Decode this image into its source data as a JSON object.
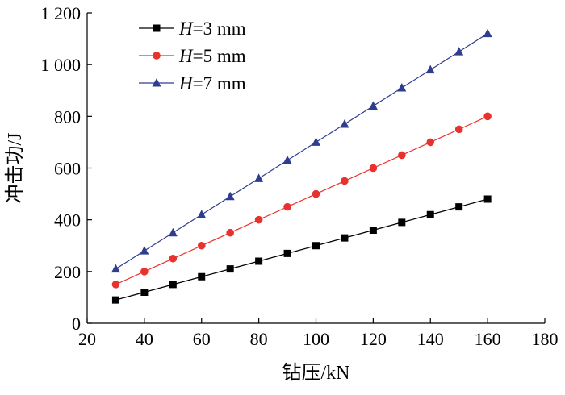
{
  "chart_data": {
    "type": "line",
    "title": "",
    "xlabel": "钻压/kN",
    "ylabel": "冲击功/J",
    "xlim": [
      20,
      180
    ],
    "ylim": [
      0,
      1200
    ],
    "xticks": [
      20,
      40,
      60,
      80,
      100,
      120,
      140,
      160,
      180
    ],
    "yticks": [
      0,
      200,
      400,
      600,
      800,
      1000,
      1200
    ],
    "xtick_labels": [
      "20",
      "40",
      "60",
      "80",
      "100",
      "120",
      "140",
      "160",
      "180"
    ],
    "ytick_labels": [
      "0",
      "200",
      "400",
      "600",
      "800",
      "1 000",
      "1 200"
    ],
    "grid": false,
    "legend_position": "top-left",
    "x": [
      30,
      40,
      50,
      60,
      70,
      80,
      90,
      100,
      110,
      120,
      130,
      140,
      150,
      160
    ],
    "series": [
      {
        "name": "H=3 mm",
        "label_var": "H",
        "label_rest": "=3 mm",
        "color": "#000000",
        "marker": "square",
        "values": [
          90,
          120,
          150,
          180,
          210,
          240,
          270,
          300,
          330,
          360,
          390,
          420,
          450,
          480
        ]
      },
      {
        "name": "H=5 mm",
        "label_var": "H",
        "label_rest": "=5 mm",
        "color": "#e8322e",
        "marker": "circle",
        "values": [
          150,
          200,
          250,
          300,
          350,
          400,
          450,
          500,
          550,
          600,
          650,
          700,
          750,
          800
        ]
      },
      {
        "name": "H=7 mm",
        "label_var": "H",
        "label_rest": "=7 mm",
        "color": "#2e3d8f",
        "marker": "triangle",
        "values": [
          210,
          280,
          350,
          420,
          490,
          560,
          630,
          700,
          770,
          840,
          910,
          980,
          1050,
          1120
        ]
      }
    ]
  }
}
